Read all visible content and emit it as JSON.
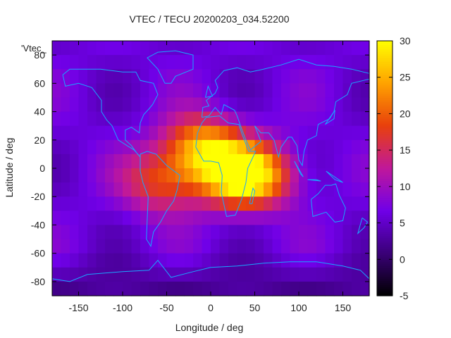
{
  "chart_data": {
    "type": "heatmap",
    "title": "VTEC / TECU 20200203_034.52200",
    "xlabel": "Longitude / deg",
    "ylabel": "Latitude / deg",
    "legend_label": "'Vtec_",
    "xlim": [
      -180,
      180
    ],
    "ylim": [
      -90,
      90
    ],
    "x_ticks": [
      -150,
      -100,
      -50,
      0,
      50,
      100,
      150
    ],
    "y_ticks": [
      -80,
      -60,
      -40,
      -20,
      0,
      20,
      40,
      60,
      80
    ],
    "colorbar": {
      "min": -5,
      "max": 30,
      "ticks": [
        -5,
        0,
        5,
        10,
        15,
        20,
        25,
        30
      ],
      "colormap": [
        "#000000",
        "#3a0078",
        "#7000e8",
        "#c0189a",
        "#e8400c",
        "#ffa200",
        "#ffff00"
      ]
    },
    "grid": {
      "lon_step": 10,
      "lat_step": 10,
      "background_level": 6,
      "enhancement_peaks": [
        {
          "lon": -10,
          "lat": 15,
          "amplitude": 18
        },
        {
          "lon": 30,
          "lat": -5,
          "amplitude": 20
        },
        {
          "lon": -55,
          "lat": -10,
          "amplitude": 12
        },
        {
          "lon": 60,
          "lat": -5,
          "amplitude": 10
        }
      ]
    }
  }
}
